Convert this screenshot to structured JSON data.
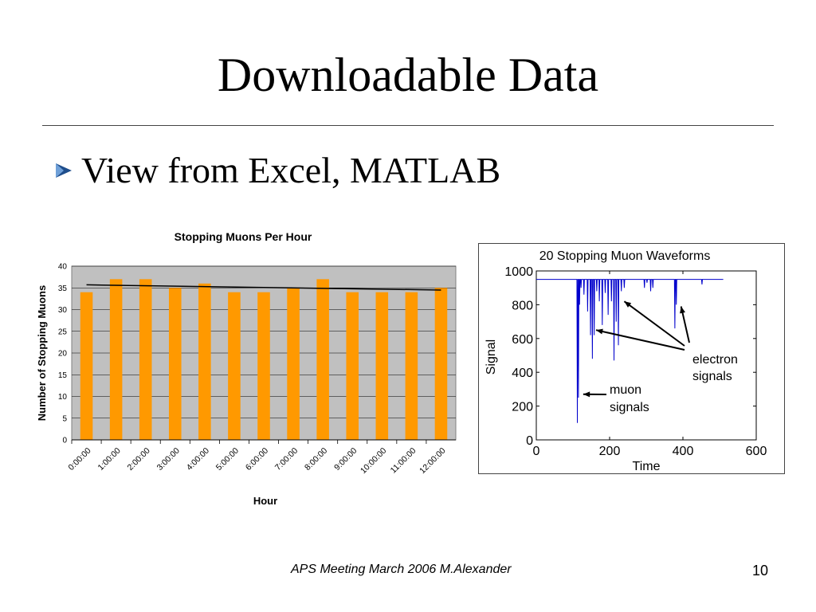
{
  "slide": {
    "title": "Downloadable Data",
    "bullet": "View from Excel, MATLAB",
    "footer": "APS Meeting March 2006 M.Alexander",
    "page_number": "10"
  },
  "colors": {
    "bar": "#FF9900",
    "plot_area": "#C0C0C0",
    "trendline": "#000000",
    "waveform": "#0000CC",
    "bullet": "#1F4E8C"
  },
  "icons": {
    "bullet": "triangle-bullet-icon"
  },
  "chart_data": [
    {
      "type": "bar",
      "title": "Stopping Muons Per Hour",
      "xlabel": "Hour",
      "ylabel": "Number of Stopping Muons",
      "categories": [
        "0:00:00",
        "1:00:00",
        "2:00:00",
        "3:00:00",
        "4:00:00",
        "5:00:00",
        "6:00:00",
        "7:00:00",
        "8:00:00",
        "9:00:00",
        "10:00:00",
        "11:00:00",
        "12:00:00"
      ],
      "values": [
        34,
        37,
        37,
        35,
        36,
        34,
        34,
        35,
        37,
        34,
        34,
        34,
        35
      ],
      "trendline": {
        "type": "linear",
        "start": 35.7,
        "end": 34.5
      },
      "ylim": [
        0,
        40
      ],
      "yticks": [
        0,
        5,
        10,
        15,
        20,
        25,
        30,
        35,
        40
      ],
      "grid": true
    },
    {
      "type": "line",
      "title": "20 Stopping Muon Waveforms",
      "xlabel": "Time",
      "ylabel": "Signal",
      "xlim": [
        0,
        600
      ],
      "ylim": [
        0,
        1000
      ],
      "xticks": [
        0,
        200,
        400,
        600
      ],
      "yticks": [
        0,
        200,
        400,
        600,
        800,
        1000
      ],
      "baseline": 950,
      "baseline_range": [
        0,
        510
      ],
      "dips": [
        {
          "x": 112,
          "y": 100
        },
        {
          "x": 115,
          "y": 250
        },
        {
          "x": 118,
          "y": 800
        },
        {
          "x": 122,
          "y": 900
        },
        {
          "x": 130,
          "y": 860
        },
        {
          "x": 140,
          "y": 760
        },
        {
          "x": 148,
          "y": 620
        },
        {
          "x": 153,
          "y": 480
        },
        {
          "x": 158,
          "y": 620
        },
        {
          "x": 165,
          "y": 880
        },
        {
          "x": 172,
          "y": 820
        },
        {
          "x": 180,
          "y": 680
        },
        {
          "x": 188,
          "y": 870
        },
        {
          "x": 196,
          "y": 740
        },
        {
          "x": 205,
          "y": 820
        },
        {
          "x": 212,
          "y": 470
        },
        {
          "x": 218,
          "y": 700
        },
        {
          "x": 224,
          "y": 560
        },
        {
          "x": 232,
          "y": 880
        },
        {
          "x": 240,
          "y": 900
        },
        {
          "x": 295,
          "y": 900
        },
        {
          "x": 302,
          "y": 930
        },
        {
          "x": 312,
          "y": 880
        },
        {
          "x": 318,
          "y": 900
        },
        {
          "x": 378,
          "y": 660
        },
        {
          "x": 382,
          "y": 800
        },
        {
          "x": 452,
          "y": 920
        }
      ],
      "annotations": [
        {
          "text": "electron signals",
          "targets": [
            {
              "x": 240,
              "y": 820
            },
            {
              "x": 163,
              "y": 650
            },
            {
              "x": 395,
              "y": 790
            }
          ]
        },
        {
          "text": "muon signals",
          "targets": [
            {
              "x": 128,
              "y": 270
            }
          ]
        }
      ]
    }
  ]
}
